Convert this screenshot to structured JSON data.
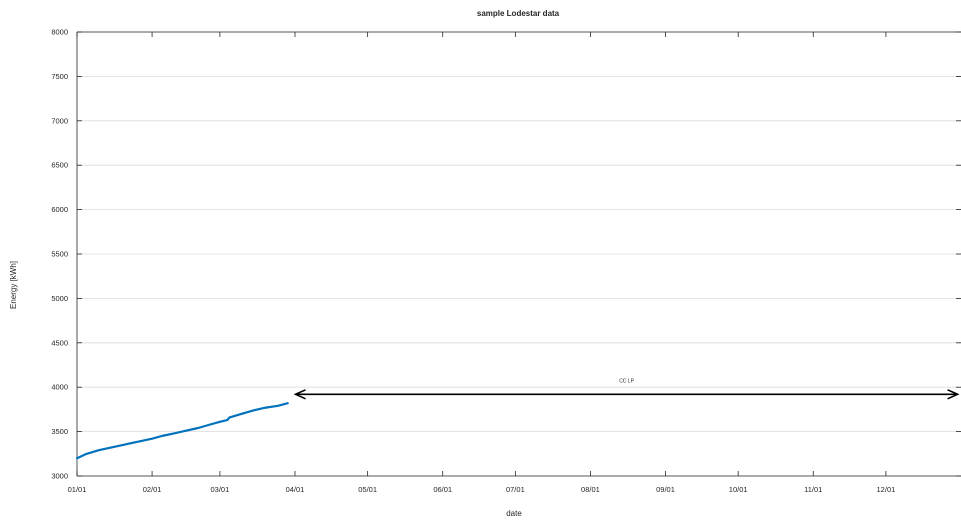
{
  "chart_data": {
    "type": "line",
    "title": "sample Lodestar data",
    "xlabel": "date",
    "ylabel": "Energy [kWh]",
    "xlim": [
      "01/01",
      "12/31"
    ],
    "ylim": [
      3000,
      8000
    ],
    "grid": "horizontal major",
    "x_ticks": [
      "01/01",
      "02/01",
      "03/01",
      "04/01",
      "05/01",
      "06/01",
      "07/01",
      "08/01",
      "09/01",
      "10/01",
      "11/01",
      "12/01"
    ],
    "y_ticks": [
      3000,
      3500,
      4000,
      4500,
      5000,
      5500,
      6000,
      6500,
      7000,
      7500,
      8000
    ],
    "series": [
      {
        "color": "#0072BD",
        "x": [
          "01/01",
          "01/05",
          "01/10",
          "01/15",
          "01/20",
          "01/25",
          "02/01",
          "02/05",
          "02/10",
          "02/15",
          "02/20",
          "02/25",
          "03/01",
          "03/04",
          "03/05",
          "03/10",
          "03/15",
          "03/20",
          "03/25",
          "03/29"
        ],
        "values": [
          3200,
          3250,
          3290,
          3320,
          3350,
          3380,
          3420,
          3450,
          3480,
          3510,
          3540,
          3580,
          3610,
          3630,
          3660,
          3700,
          3740,
          3770,
          3790,
          3820
        ]
      }
    ],
    "annotations": [
      {
        "type": "double-arrow",
        "label": "CC LP",
        "x_start": "03/31",
        "x_end": "12/31",
        "y": 3920,
        "color": "#000000"
      }
    ]
  }
}
